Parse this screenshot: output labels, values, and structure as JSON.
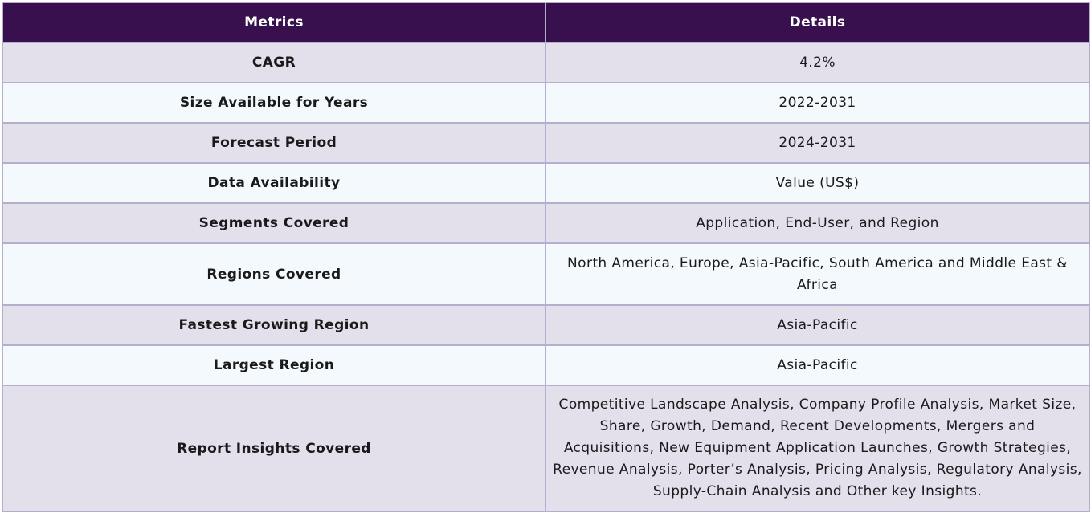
{
  "table": {
    "headers": [
      "Metrics",
      "Details"
    ],
    "rows": [
      {
        "metric": "CAGR",
        "detail": "4.2%"
      },
      {
        "metric": "Size Available for Years",
        "detail": "2022-2031"
      },
      {
        "metric": "Forecast Period",
        "detail": "2024-2031"
      },
      {
        "metric": "Data Availability",
        "detail": "Value (US$)"
      },
      {
        "metric": "Segments Covered",
        "detail": "Application, End-User, and Region"
      },
      {
        "metric": "Regions Covered",
        "detail": "North America, Europe, Asia-Pacific, South America and Middle East & Africa"
      },
      {
        "metric": "Fastest Growing Region",
        "detail": "Asia-Pacific"
      },
      {
        "metric": "Largest Region",
        "detail": "Asia-Pacific"
      },
      {
        "metric": "Report Insights Covered",
        "detail": "Competitive Landscape Analysis, Company Profile Analysis, Market Size, Share, Growth, Demand, Recent Developments, Mergers and Acquisitions, New Equipment Application Launches, Growth Strategies, Revenue Analysis, Porter’s Analysis, Pricing Analysis, Regulatory Analysis, Supply-Chain Analysis and Other key Insights."
      }
    ]
  },
  "colors": {
    "header_bg": "#37104d",
    "row_odd_bg": "#e3dfeb",
    "row_even_bg": "#f3f9fc",
    "border": "#b3b0cf"
  }
}
